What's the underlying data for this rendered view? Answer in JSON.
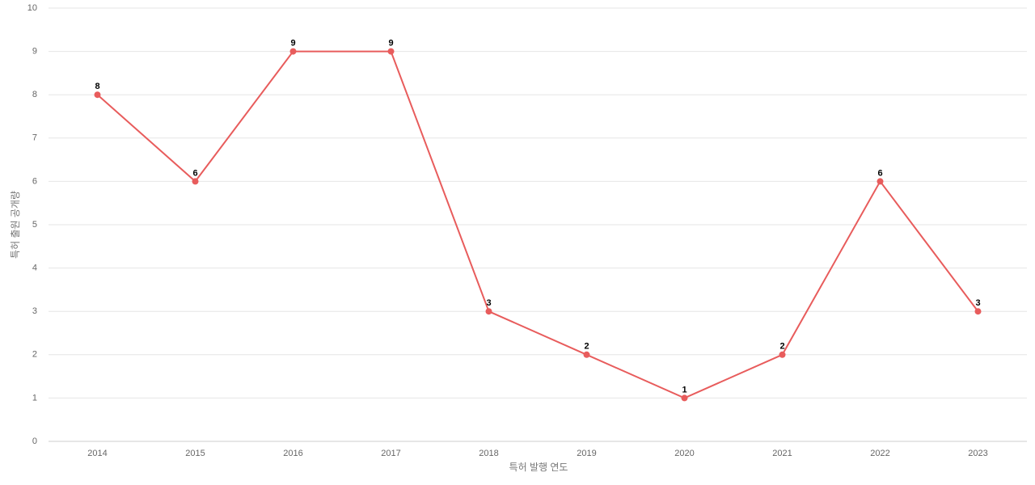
{
  "chart_data": {
    "type": "line",
    "x_label": "특허 발행 연도",
    "y_label": "특허 출원 공개량",
    "categories": [
      "2014",
      "2015",
      "2016",
      "2017",
      "2018",
      "2019",
      "2020",
      "2021",
      "2022",
      "2023"
    ],
    "series": [
      {
        "color": "#e85c5c",
        "values": [
          8,
          6,
          9,
          9,
          3,
          2,
          1,
          2,
          6,
          3
        ]
      }
    ],
    "ylim": [
      0,
      10
    ],
    "yticks": [
      0,
      1,
      2,
      3,
      4,
      5,
      6,
      7,
      8,
      9,
      10
    ],
    "grid": true
  }
}
